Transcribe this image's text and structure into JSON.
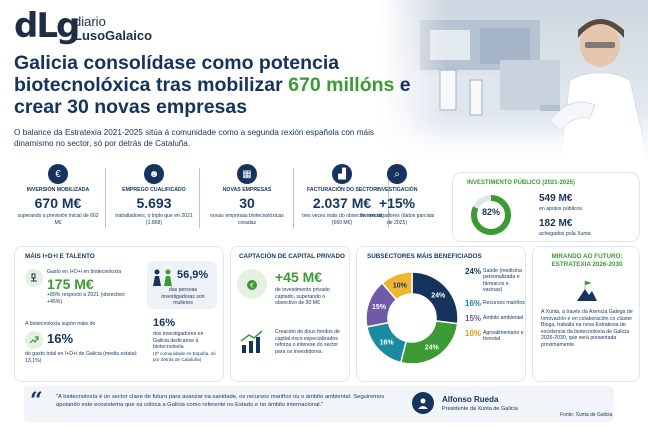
{
  "header": {
    "logo_mark": "dLg",
    "logo_line1": "diario",
    "logo_line2": "LusoGalaico",
    "title_part1": "Galicia consolídase como potencia biotecnolóxica tras mobilizar ",
    "title_highlight": "670 millóns",
    "title_part2": " e crear 30 novas empresas",
    "subtitle": "O balance da Estratexia 2021-2025 sitúa á comunidade como a segunda rexión española con máis dinamismo no sector, só por detrás de Cataluña."
  },
  "kpis": [
    {
      "label": "INVERSIÓN MOBILIZADA",
      "value": "670 M€",
      "desc": "superando a previsión inicial de 662 M€",
      "icon": "money-icon"
    },
    {
      "label": "EMPREGO CUALIFICADO",
      "value": "5.693",
      "desc": "traballadores, o triplo que en 2021 (1.868)",
      "icon": "people-icon"
    },
    {
      "label": "NOVAS EMPRESAS",
      "value": "30",
      "desc": "novas empresas biotecnolóxicas creadas",
      "icon": "building-icon"
    },
    {
      "label": "FACTURACIÓN DO SECTOR",
      "value": "2.037 M€",
      "desc": "tres veces máis do obxectivo inicial (660 M€)",
      "icon": "chart-icon"
    },
    {
      "label": "INVESTIGACIÓN",
      "value": "+15%",
      "desc": "de investigadores (datos parciais de 2025)",
      "icon": "magnifier-icon"
    }
  ],
  "public_investment": {
    "title": "INVESTIMENTO PÚBLICO (2021-2025)",
    "percent": "82%",
    "percent_value": 0.82,
    "line1_value": "549 M€",
    "line1_desc": "en apoios públicos",
    "line2_value": "182 M€",
    "line2_desc": "achegados pola Xunta"
  },
  "talent": {
    "title": "MÁIS I+D+I E TALENTO",
    "spend_label": "Gasto en I+D+i en biotecnoloxía",
    "spend_value": "175 M€",
    "spend_desc": "+89% respecto a 2021 (obxectivo: +45%)",
    "rise_label": "A biotecnoloxía supón máis do",
    "rise_value": "16%",
    "rise_desc": "do gasto total en I+D+i de Galicia (media estatal: 13,1%)",
    "women_value": "56,9%",
    "women_desc": "das persoas investigadoras son mulleres",
    "dedicated_value": "16%",
    "dedicated_desc": "dos investigadores en Galicia dedicanse á biotecnoloxía",
    "dedicated_note": "(2ª comunidade en España, só por detrás de Cataluña)"
  },
  "capital": {
    "title": "CAPTACIÓN DE CAPITAL PRIVADO",
    "value": "+45 M€",
    "desc": "de investimento privado captado, superando o obxectivo de 30 M€",
    "funds_desc": "Creación de dous fondos de capital risco especializados reforza o interese do sector para os investidores."
  },
  "subsectors": {
    "title": "SUBSECTORES MÁIS BENEFICIADOS",
    "items": [
      {
        "pct": "24%",
        "name": "Saúde",
        "note": "(medicina personalizada e fármacos e vacinas)",
        "color": "#15335c",
        "value": 24
      },
      {
        "pct": "16%",
        "name": "Recursos mariños",
        "note": "",
        "color": "#1a8aa0",
        "value": 16
      },
      {
        "pct": "15%",
        "name": "Ámbito ambiental",
        "note": "",
        "color": "#6f5aa8",
        "value": 15
      },
      {
        "pct": "10%",
        "name": "Agroalimentario e forestal",
        "note": "",
        "color": "#f0b52e",
        "value": 10
      }
    ],
    "donut_labels": [
      "24%",
      "24%",
      "16%",
      "15%",
      "10%"
    ],
    "donut_extra": {
      "pct": "24%",
      "color": "#3c9a35",
      "value": 24
    }
  },
  "future": {
    "title": "MIRANDO AO FUTURO: ESTRATEXIA 2026-2030",
    "desc": "A Xunta, a través da Axencia Galega de Innovación e en colaboración co clúster Bioga, traballa na nova Estratexia de excelencia da biotecnoloxía de Galicia 2026-2030, que será presentada proximamente."
  },
  "quote": {
    "text": "\"A biotecnoloxía é un sector clave de futuro para avanzar na sanidade, os recursos mariños ou o ámbito ambiental. Seguiremos apoiando este ecosistema que xa coloca a Galicia como referente no Estado e no ámbito internacional.\"",
    "author": "Alfonso Rueda",
    "role": "Presidente da Xunta de Galicia"
  },
  "source": "Fonte: Xunta de Galicia"
}
